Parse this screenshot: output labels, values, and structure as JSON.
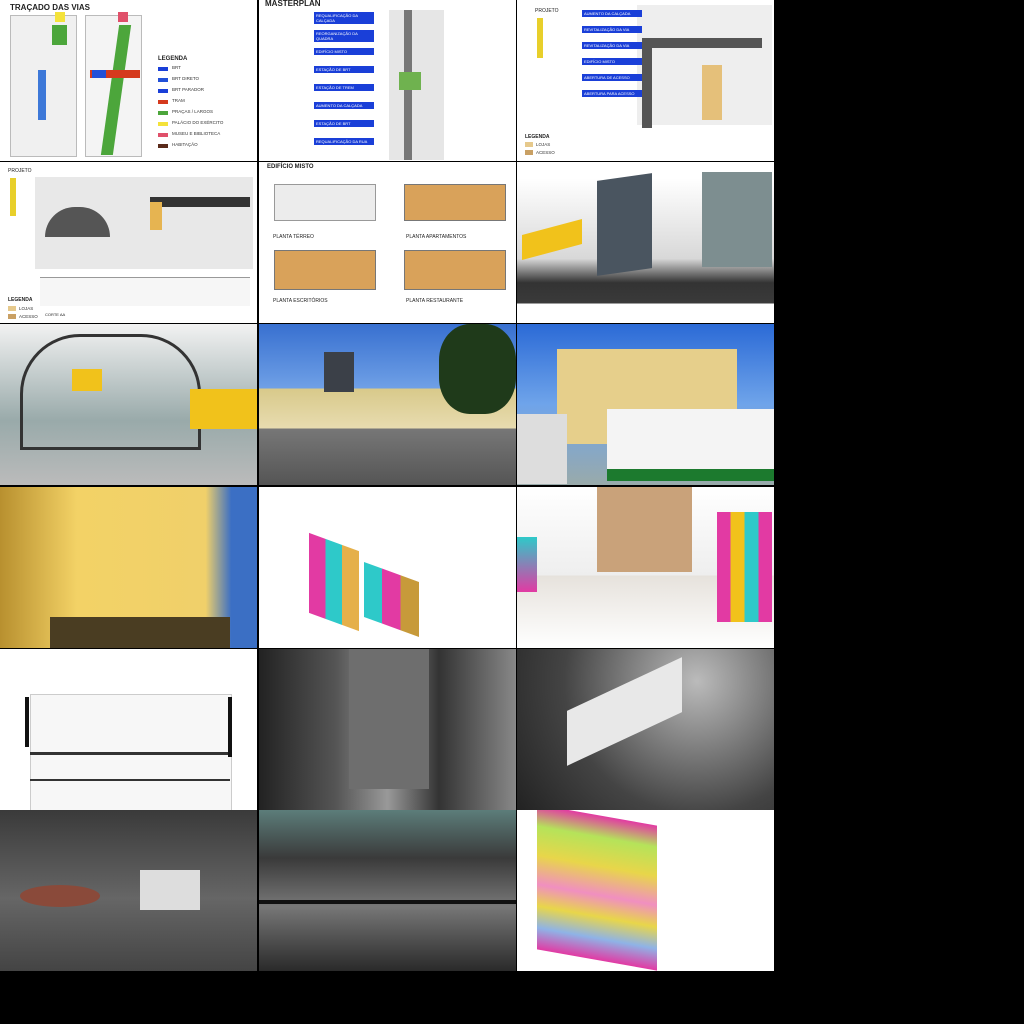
{
  "panel1": {
    "title": "TRAÇADO DAS VIAS",
    "legend_title": "LEGENDA",
    "legend": [
      "BRT",
      "BRT DIRETO",
      "BRT PARADOR",
      "TRAM",
      "PRAÇAS / LARGOS",
      "PALÁCIO DO EXÉRCITO",
      "MUSEU E BIBLIOTECA",
      "HABITAÇÃO"
    ]
  },
  "panel2": {
    "title": "MASTERPLAN",
    "labels": [
      "REQUALIFICAÇÃO DA CALÇADA",
      "REORGANIZAÇÃO DA QUADRA",
      "EDIFÍCIO MISTO",
      "ESTAÇÃO DE BRT",
      "ESTAÇÃO DE TREM",
      "AUMENTO DA CALÇADA",
      "ESTAÇÃO DE BRT",
      "REQUALIFICAÇÃO DA RUA"
    ]
  },
  "panel3": {
    "project": "PROJETO",
    "labels": [
      "AUMENTO DA CALÇADA",
      "REVITALIZAÇÃO DA VIA",
      "REVITALIZAÇÃO DA VIA",
      "EDIFÍCIO MISTO",
      "ABERTURA DE ACESSO",
      "ABERTURA PARA ACESSO"
    ],
    "legend_title": "LEGENDA",
    "legend": [
      "LOJAS",
      "ACESSO"
    ]
  },
  "panel4": {
    "project": "PROJETO",
    "legend_title": "LEGENDA",
    "legend": [
      "LOJAS",
      "ACESSO"
    ],
    "section": "CORTE AA"
  },
  "panel5": {
    "title": "EDIFÍCIO MISTO",
    "plans": [
      "PLANTA TÉRREO",
      "PLANTA APARTAMENTOS",
      "PLANTA ESCRITÓRIOS",
      "PLANTA RESTAURANTE"
    ]
  }
}
